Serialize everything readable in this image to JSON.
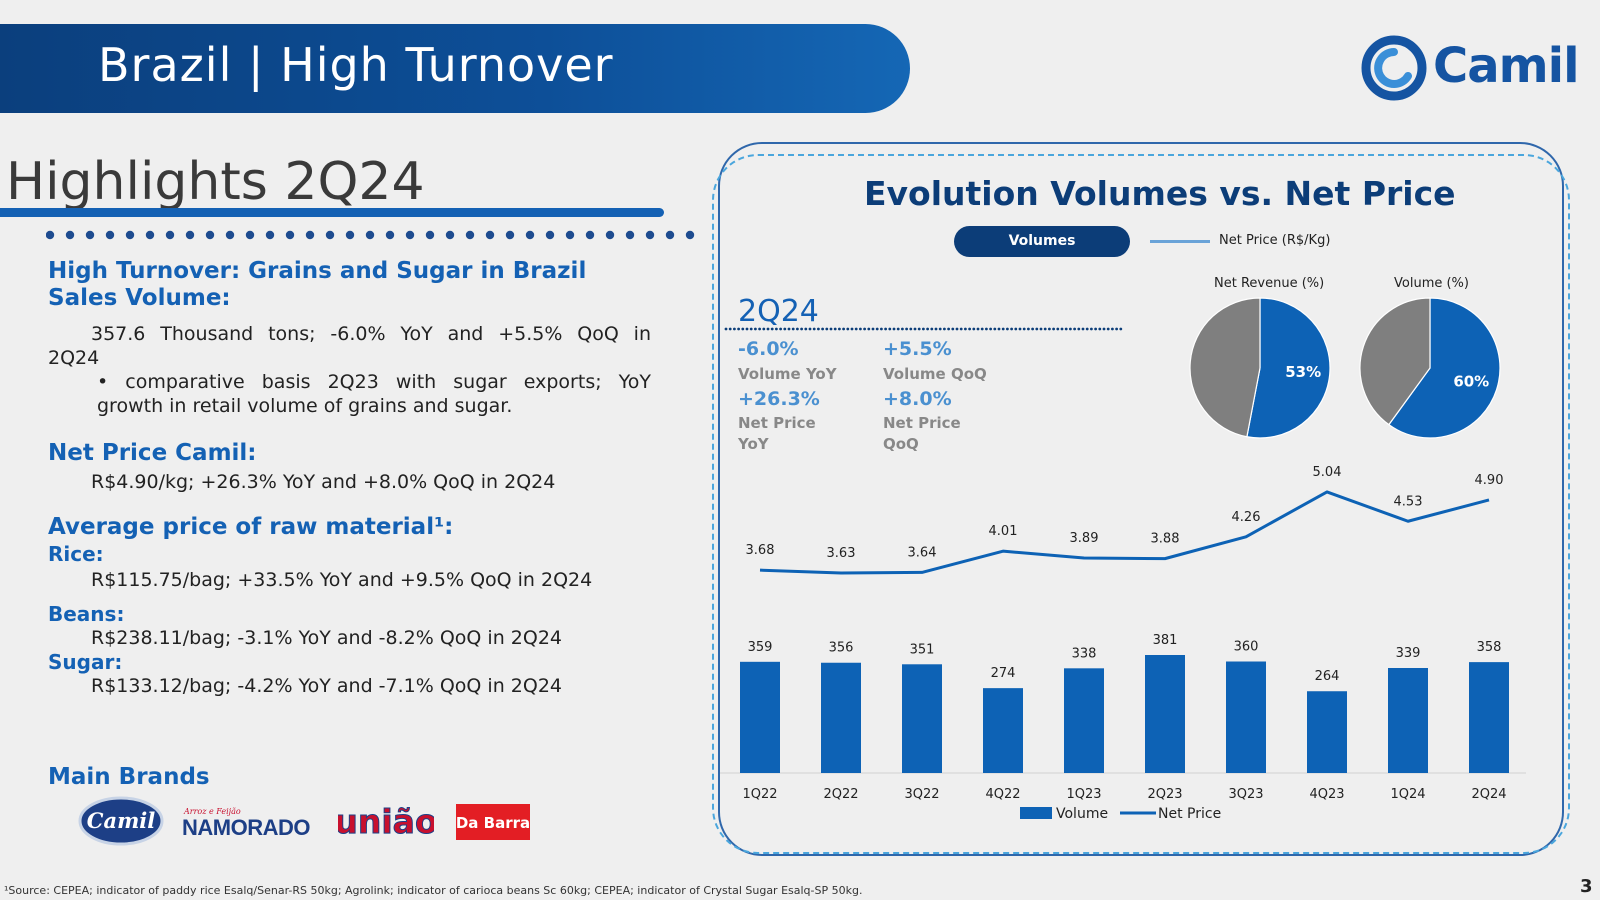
{
  "header": {
    "title": "Brazil | High Turnover",
    "logo_text": "Camil"
  },
  "highlights": {
    "title": "Highlights 2Q24",
    "sections": {
      "grains_title": "High Turnover: Grains and Sugar in Brazil",
      "sales_volume_title": "Sales Volume:",
      "sales_volume_line1": "357.6 Thousand tons; -6.0% YoY and +5.5% QoQ in",
      "sales_volume_line2": "2Q24",
      "sales_volume_bullet_line1": "• comparative basis 2Q23 with sugar exports; YoY",
      "sales_volume_bullet_line2": "growth in retail volume of grains and sugar.",
      "net_price_title": "Net Price Camil:",
      "net_price_text": "R$4.90/kg; +26.3% YoY and +8.0% QoQ in 2Q24",
      "raw_material_title": "Average price of raw material¹:",
      "rice_title": "Rice:",
      "rice_text": "R$115.75/bag; +33.5% YoY and +9.5% QoQ in 2Q24",
      "beans_title": "Beans:",
      "beans_text": "R$238.11/bag; -3.1% YoY and -8.2% QoQ in 2Q24",
      "sugar_title": "Sugar:",
      "sugar_text": "R$133.12/bag; -4.2% YoY and -7.1% QoQ in 2Q24"
    },
    "brands_title": "Main Brands",
    "brands": [
      "Camil",
      "Arroz e Feijão",
      "NAMORADO",
      "união",
      "Da Barra"
    ]
  },
  "panel": {
    "title": "Evolution Volumes vs. Net Price",
    "toggle_volumes": "Volumes",
    "toggle_net_price": "Net Price (R$/Kg)",
    "quarter": "2Q24",
    "kpis": [
      {
        "value": "-6.0%",
        "label": "Volume YoY"
      },
      {
        "value": "+5.5%",
        "label": "Volume QoQ"
      },
      {
        "value": "+26.3%",
        "label_line1": "Net Price",
        "label_line2": "YoY"
      },
      {
        "value": "+8.0%",
        "label_line1": "Net Price",
        "label_line2": "QoQ"
      }
    ],
    "colors": {
      "primary": "#0d62b5",
      "grey": "#7f7f7f",
      "navy": "#0c3d78",
      "light_blue": "#4a90d0"
    }
  },
  "chart_data": [
    {
      "type": "pie",
      "title": "Net Revenue (%)",
      "values": [
        53,
        47
      ],
      "labels": [
        "53%",
        ""
      ],
      "colors": [
        "#0d62b5",
        "#7f7f7f"
      ]
    },
    {
      "type": "pie",
      "title": "Volume (%)",
      "values": [
        60,
        40
      ],
      "labels": [
        "60%",
        ""
      ],
      "colors": [
        "#0d62b5",
        "#7f7f7f"
      ]
    },
    {
      "type": "bar",
      "categories": [
        "1Q22",
        "2Q22",
        "3Q22",
        "4Q22",
        "1Q23",
        "2Q23",
        "3Q23",
        "4Q23",
        "1Q24",
        "2Q24"
      ],
      "series": [
        {
          "name": "Volume",
          "type": "bar",
          "values": [
            359,
            356,
            351,
            274,
            338,
            381,
            360,
            264,
            339,
            358
          ],
          "color": "#0d62b5"
        },
        {
          "name": "Net Price",
          "type": "line",
          "values": [
            3.68,
            3.63,
            3.64,
            4.01,
            3.89,
            3.88,
            4.26,
            5.04,
            4.53,
            4.9
          ],
          "color": "#0d62b5"
        }
      ],
      "legend": "bottom"
    }
  ],
  "footnote": "¹Source: CEPEA; indicator of paddy rice Esalq/Senar-RS 50kg; Agrolink; indicator of carioca beans Sc 60kg; CEPEA; indicator of Crystal Sugar Esalq-SP 50kg.",
  "page_number": "3"
}
